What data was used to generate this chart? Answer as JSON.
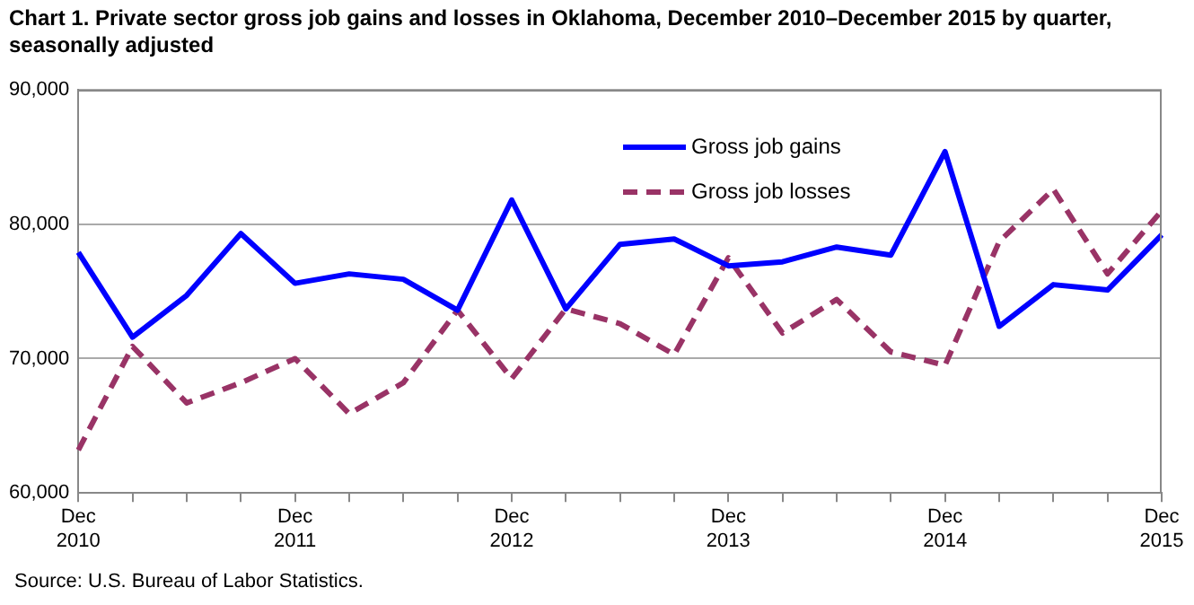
{
  "chart_data": {
    "type": "line",
    "title": "Chart 1. Private sector gross job gains and losses in Oklahoma, December 2010–December 2015 by quarter, seasonally adjusted",
    "categories": [
      "Dec\n2010",
      null,
      null,
      null,
      "Dec\n2011",
      null,
      null,
      null,
      "Dec\n2012",
      null,
      null,
      null,
      "Dec\n2013",
      null,
      null,
      null,
      "Dec\n2014",
      null,
      null,
      null,
      "Dec\n2015"
    ],
    "series": [
      {
        "name": "Gross job gains",
        "color": "#0000ff",
        "line_style": "solid",
        "values": [
          77900,
          71600,
          74700,
          79300,
          75600,
          76300,
          75900,
          73600,
          81800,
          73700,
          78500,
          78900,
          76900,
          77200,
          78300,
          77700,
          85400,
          72400,
          75500,
          75100,
          79200
        ]
      },
      {
        "name": "Gross job losses",
        "color": "#993366",
        "line_style": "dashed",
        "values": [
          63200,
          70900,
          66700,
          68200,
          70000,
          65900,
          68200,
          73600,
          68500,
          73700,
          72600,
          70300,
          77500,
          71900,
          74400,
          70500,
          69500,
          78700,
          82600,
          76300,
          81000
        ]
      }
    ],
    "ylim": [
      60000,
      90000
    ],
    "yticks": [
      {
        "value": 60000,
        "label": "60,000"
      },
      {
        "value": 70000,
        "label": "70,000"
      },
      {
        "value": 80000,
        "label": "80,000"
      },
      {
        "value": 90000,
        "label": "90,000"
      }
    ],
    "grid": "y",
    "legend": "top right",
    "marker": "none",
    "annotations": [
      "Source: U.S. Bureau of Labor Statistics."
    ]
  }
}
